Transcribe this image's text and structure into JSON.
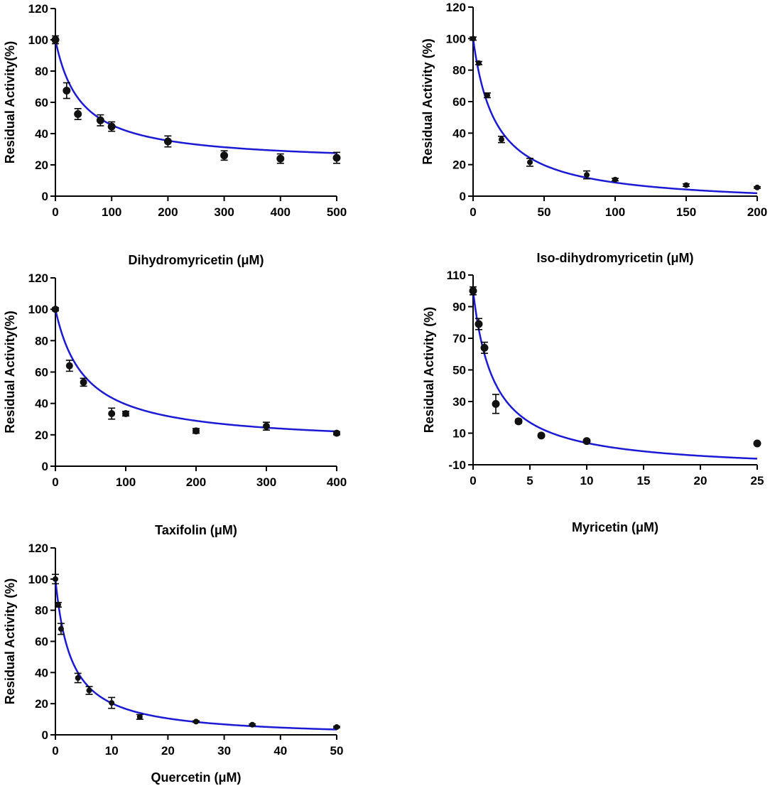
{
  "chart_data": [
    {
      "type": "scatter",
      "title": "",
      "xlabel": "Dihydromyricetin (μM)",
      "ylabel": "Residual Activity(%)",
      "xlim": [
        0,
        500
      ],
      "ylim": [
        0,
        120
      ],
      "xticks": [
        "0",
        "100",
        "200",
        "300",
        "400",
        "500"
      ],
      "yticks": [
        "0",
        "20",
        "40",
        "60",
        "80",
        "100",
        "120"
      ],
      "x": [
        0,
        20,
        40,
        80,
        100,
        200,
        300,
        400,
        500
      ],
      "y": [
        100,
        67.5,
        52.5,
        48.5,
        44.5,
        35,
        26,
        24,
        24.5
      ],
      "err": [
        2.5,
        5,
        3.5,
        3.5,
        3,
        3.5,
        3,
        3,
        3.5
      ],
      "marker_size": 5.5,
      "fit": {
        "model": "Y = bottom + (top - bottom) * IC50 / (IC50 + X)",
        "top": 100,
        "bottom": 21,
        "ic50": 45
      }
    },
    {
      "type": "scatter",
      "title": "",
      "xlabel": "Iso-dihydromyricetin (μM)",
      "ylabel": "Residual Activity (%)",
      "xlim": [
        0,
        200
      ],
      "ylim": [
        0,
        120
      ],
      "xticks": [
        "0",
        "50",
        "100",
        "150",
        "200"
      ],
      "yticks": [
        "0",
        "20",
        "40",
        "60",
        "80",
        "100",
        "120"
      ],
      "x": [
        0,
        4,
        10,
        20,
        40,
        80,
        100,
        150,
        200
      ],
      "y": [
        100,
        84.5,
        64,
        36,
        21.5,
        13.5,
        10.5,
        7,
        5.5
      ],
      "err": [
        1,
        1,
        1.5,
        2,
        2.5,
        2.5,
        0.8,
        0.8,
        0.5
      ],
      "marker_size": 4,
      "fit": {
        "model": "Y = bottom + (top - bottom) * IC50 / (IC50 + X)",
        "top": 100,
        "bottom": -6,
        "ic50": 16
      }
    },
    {
      "type": "scatter",
      "title": "",
      "xlabel": "Taxifolin (μM)",
      "ylabel": "Residual Activity(%)",
      "xlim": [
        0,
        400
      ],
      "ylim": [
        0,
        120
      ],
      "xticks": [
        "0",
        "100",
        "200",
        "300",
        "400"
      ],
      "yticks": [
        "0",
        "20",
        "40",
        "60",
        "80",
        "100",
        "120"
      ],
      "x": [
        0,
        20,
        40,
        80,
        100,
        200,
        300,
        400
      ],
      "y": [
        100,
        64,
        53.5,
        33.5,
        33.5,
        22.5,
        25.5,
        21
      ],
      "err": [
        1,
        3.5,
        2.5,
        3.5,
        1.5,
        1.5,
        2.5,
        1
      ],
      "marker_size": 5,
      "fit": {
        "model": "Y = bottom + (top - bottom) * IC50 / (IC50 + X)",
        "top": 100,
        "bottom": 14,
        "ic50": 42
      }
    },
    {
      "type": "scatter",
      "title": "",
      "xlabel": "Myricetin (μM)",
      "ylabel": "Residual Activity (%)",
      "xlim": [
        0,
        25
      ],
      "ylim": [
        -10,
        110
      ],
      "xticks": [
        "0",
        "5",
        "10",
        "15",
        "20",
        "25"
      ],
      "yticks": [
        "-10",
        "10",
        "30",
        "50",
        "70",
        "90",
        "110"
      ],
      "x": [
        0,
        0.5,
        1,
        2,
        4,
        6,
        10,
        25
      ],
      "y": [
        100,
        79,
        64,
        28.5,
        17.5,
        8.5,
        5,
        3.5
      ],
      "err": [
        2.5,
        3.5,
        3.5,
        6,
        1.2,
        1,
        1,
        0.8
      ],
      "marker_size": 5.5,
      "fit": {
        "model": "Y = bottom + (top - bottom) * IC50 / (IC50 + X)",
        "top": 100,
        "bottom": -14,
        "ic50": 1.85
      }
    },
    {
      "type": "scatter",
      "title": "",
      "xlabel": "Quercetin (μM)",
      "ylabel": "Residual Activity (%)",
      "xlim": [
        0,
        50
      ],
      "ylim": [
        0,
        120
      ],
      "xticks": [
        "0",
        "10",
        "20",
        "30",
        "40",
        "50"
      ],
      "yticks": [
        "0",
        "20",
        "40",
        "60",
        "80",
        "100",
        "120"
      ],
      "x": [
        0,
        0.5,
        1,
        4,
        6,
        10,
        15,
        25,
        35,
        50
      ],
      "y": [
        100,
        83.5,
        68,
        36.5,
        28.5,
        20.5,
        11.5,
        8.5,
        6.5,
        5
      ],
      "err": [
        3,
        1.5,
        3.5,
        3,
        2.5,
        3.5,
        1.5,
        0.5,
        0.5,
        0.5
      ],
      "marker_size": 4,
      "fit": {
        "model": "Y = bottom + (top - bottom) * IC50 / (IC50 + X)",
        "top": 100,
        "bottom": -2,
        "ic50": 2.8
      }
    }
  ],
  "colors": {
    "fit_line": "#1a1ad6",
    "marker": "#111111",
    "axis": "#000000"
  }
}
